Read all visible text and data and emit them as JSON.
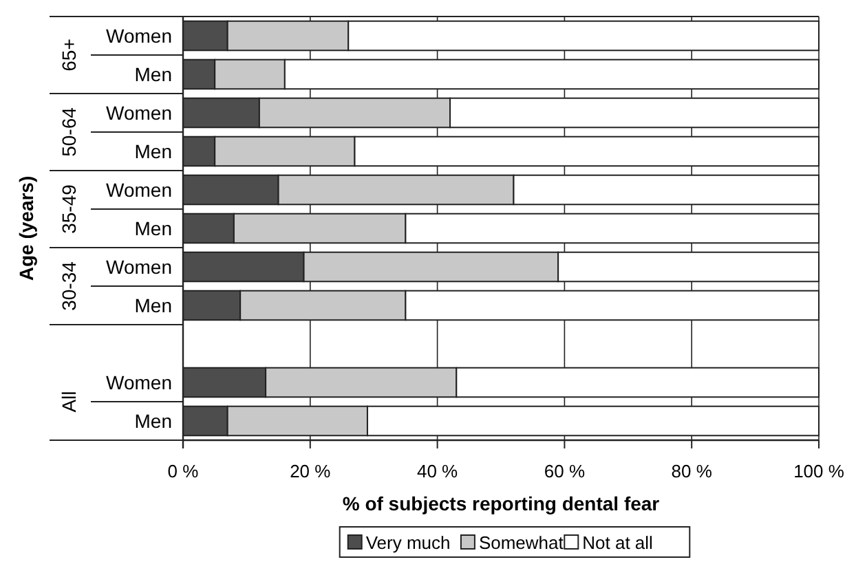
{
  "chart_data": {
    "type": "bar",
    "orientation": "horizontal",
    "stacked": true,
    "ylabel": "Age (years)",
    "xlabel": "% of subjects reporting dental fear",
    "categories": [
      "Women",
      "Men",
      "Women",
      "Men",
      "Women",
      "Men",
      "Women",
      "Men",
      null,
      "Women",
      "Men"
    ],
    "annotations": [
      "65+",
      "50-64",
      "35-49",
      "30-34",
      "All"
    ],
    "series": [
      {
        "name": "Very much",
        "color": "#4d4d4d",
        "values": [
          7,
          5,
          12,
          5,
          15,
          8,
          19,
          9,
          null,
          13,
          7
        ]
      },
      {
        "name": "Somewhat",
        "color": "#c8c8c8",
        "values": [
          19,
          11,
          30,
          22,
          37,
          27,
          40,
          26,
          null,
          30,
          22
        ]
      },
      {
        "name": "Not at all",
        "color": "#ffffff",
        "values": [
          74,
          84,
          58,
          73,
          48,
          65,
          41,
          65,
          null,
          57,
          71
        ]
      }
    ],
    "xlim": [
      0,
      100
    ],
    "xticks": [
      {
        "value": 0,
        "label": "0 %"
      },
      {
        "value": 20,
        "label": "20 %"
      },
      {
        "value": 40,
        "label": "40 %"
      },
      {
        "value": 60,
        "label": "60 %"
      },
      {
        "value": 80,
        "label": "80 %"
      },
      {
        "value": 100,
        "label": "100 %"
      }
    ],
    "grid": "x",
    "legend": "bottom"
  }
}
